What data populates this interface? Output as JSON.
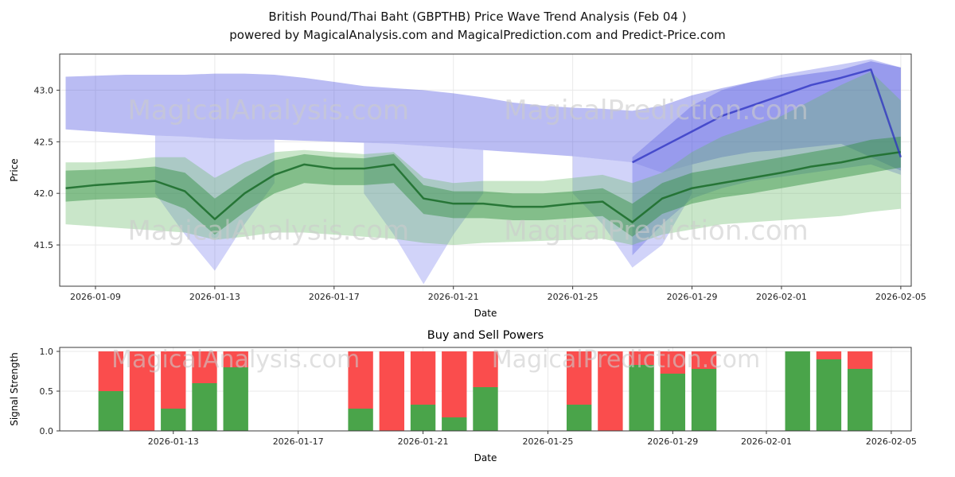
{
  "page": {
    "title_line1": "British Pound/Thai Baht (GBPTHB) Price Wave Trend Analysis (Feb 04 )",
    "title_line2": "powered by MagicalAnalysis.com and MagicalPrediction.com and Predict-Price.com"
  },
  "watermarks": {
    "analysis": "MagicalAnalysis.com",
    "prediction": "MagicalPrediction.com"
  },
  "chart_data": [
    {
      "name": "price_wave_trend",
      "type": "area",
      "title": "British Pound/Thai Baht (GBPTHB) Price Wave Trend Analysis (Feb 04 )",
      "xlabel": "Date",
      "ylabel": "Price",
      "x_base": "2026-01-08",
      "xlim": [
        -0.2,
        28.35
      ],
      "ylim": [
        41.1,
        43.35
      ],
      "ytick_values": [
        41.5,
        42.0,
        42.5,
        43.0
      ],
      "ytick_labels": [
        "41.5",
        "42.0",
        "42.5",
        "43.0"
      ],
      "xtick_labels": [
        "2026-01-09",
        "2026-01-13",
        "2026-01-17",
        "2026-01-21",
        "2026-01-25",
        "2026-01-29",
        "2026-02-01",
        "2026-02-05"
      ],
      "x_dates": [
        "2026-01-08",
        "2026-01-09",
        "2026-01-10",
        "2026-01-11",
        "2026-01-12",
        "2026-01-13",
        "2026-01-14",
        "2026-01-15",
        "2026-01-16",
        "2026-01-17",
        "2026-01-18",
        "2026-01-19",
        "2026-01-20",
        "2026-01-21",
        "2026-01-22",
        "2026-01-23",
        "2026-01-24",
        "2026-01-25",
        "2026-01-26",
        "2026-01-27",
        "2026-01-28",
        "2026-01-29",
        "2026-01-30",
        "2026-01-31",
        "2026-02-01",
        "2026-02-02",
        "2026-02-03",
        "2026-02-04",
        "2026-02-05"
      ],
      "bands": [
        {
          "name": "blue-upper-band",
          "color": "#4a50e0",
          "opacity": 0.38,
          "upper": [
            43.13,
            43.14,
            43.15,
            43.15,
            43.15,
            43.16,
            43.16,
            43.15,
            43.12,
            43.08,
            43.04,
            43.02,
            43.0,
            42.97,
            42.93,
            42.88,
            42.85,
            42.83,
            42.82,
            42.8,
            42.85,
            42.95,
            43.02,
            43.08,
            43.12,
            43.16,
            43.2,
            43.28,
            43.22
          ],
          "lower": [
            42.62,
            42.6,
            42.58,
            42.56,
            42.55,
            42.53,
            42.52,
            42.52,
            42.51,
            42.5,
            42.49,
            42.48,
            42.46,
            42.44,
            42.42,
            42.4,
            42.38,
            42.36,
            42.33,
            42.3,
            42.2,
            42.28,
            42.35,
            42.4,
            42.42,
            42.45,
            42.48,
            42.35,
            42.22
          ]
        },
        {
          "name": "blue-dip-band",
          "color": "#5a60e8",
          "opacity": 0.28,
          "upper": [
            null,
            null,
            null,
            42.56,
            42.55,
            42.53,
            42.52,
            42.52,
            null,
            null,
            42.49,
            42.48,
            42.46,
            42.44,
            42.42,
            null,
            null,
            42.36,
            42.33,
            42.3,
            42.2,
            42.28,
            null,
            null,
            null,
            null,
            null,
            null,
            null
          ],
          "lower": [
            null,
            null,
            null,
            42.0,
            41.6,
            41.25,
            41.7,
            42.1,
            null,
            null,
            42.0,
            41.6,
            41.12,
            41.6,
            42.0,
            null,
            null,
            42.0,
            41.7,
            41.28,
            41.5,
            42.0,
            null,
            null,
            null,
            null,
            null,
            null,
            null
          ]
        },
        {
          "name": "blue-right-surge-band",
          "color": "#4a50e0",
          "opacity": 0.3,
          "upper": [
            null,
            null,
            null,
            null,
            null,
            null,
            null,
            null,
            null,
            null,
            null,
            null,
            null,
            null,
            null,
            null,
            null,
            null,
            null,
            42.35,
            42.6,
            42.85,
            43.0,
            43.08,
            43.15,
            43.2,
            43.25,
            43.3,
            43.22
          ],
          "lower": [
            null,
            null,
            null,
            null,
            null,
            null,
            null,
            null,
            null,
            null,
            null,
            null,
            null,
            null,
            null,
            null,
            null,
            null,
            null,
            41.4,
            41.7,
            41.95,
            42.05,
            42.12,
            42.16,
            42.2,
            42.24,
            42.28,
            42.18
          ]
        },
        {
          "name": "green-outer-band",
          "color": "#63b663",
          "opacity": 0.35,
          "upper": [
            42.3,
            42.3,
            42.32,
            42.35,
            42.35,
            42.15,
            42.3,
            42.4,
            42.42,
            42.4,
            42.38,
            42.4,
            42.15,
            42.1,
            42.12,
            42.12,
            42.12,
            42.15,
            42.18,
            42.1,
            42.2,
            42.4,
            42.55,
            42.65,
            42.75,
            42.9,
            43.05,
            43.18,
            42.9
          ],
          "lower": [
            41.7,
            41.68,
            41.66,
            41.64,
            41.62,
            41.55,
            41.58,
            41.62,
            41.62,
            41.6,
            41.58,
            41.56,
            41.52,
            41.5,
            41.52,
            41.53,
            41.54,
            41.55,
            41.56,
            41.5,
            41.6,
            41.65,
            41.7,
            41.72,
            41.74,
            41.76,
            41.78,
            41.82,
            41.85
          ]
        },
        {
          "name": "green-inner-band",
          "color": "#2f8f3f",
          "opacity": 0.45,
          "upper": [
            42.22,
            42.23,
            42.24,
            42.26,
            42.2,
            41.95,
            42.15,
            42.32,
            42.38,
            42.35,
            42.34,
            42.38,
            42.08,
            42.02,
            42.02,
            42.0,
            42.0,
            42.02,
            42.05,
            41.9,
            42.1,
            42.2,
            42.25,
            42.3,
            42.35,
            42.4,
            42.45,
            42.52,
            42.55
          ],
          "lower": [
            41.92,
            41.94,
            41.95,
            41.96,
            41.85,
            41.6,
            41.82,
            42.0,
            42.1,
            42.08,
            42.08,
            42.1,
            41.8,
            41.76,
            41.76,
            41.74,
            41.74,
            41.76,
            41.78,
            41.58,
            41.8,
            41.9,
            41.96,
            42.0,
            42.05,
            42.1,
            42.15,
            42.2,
            42.25
          ]
        }
      ],
      "lines": [
        {
          "name": "green-trend-line",
          "color": "#1e6f2e",
          "width": 2.5,
          "opacity": 0.9,
          "values": [
            42.05,
            42.08,
            42.1,
            42.12,
            42.02,
            41.75,
            42.0,
            42.18,
            42.28,
            42.24,
            42.24,
            42.28,
            41.95,
            41.9,
            41.9,
            41.87,
            41.87,
            41.9,
            41.92,
            41.72,
            41.95,
            42.05,
            42.1,
            42.15,
            42.2,
            42.26,
            42.3,
            42.36,
            42.4
          ]
        },
        {
          "name": "blue-trend-line",
          "color": "#2b30c0",
          "width": 2.5,
          "opacity": 0.75,
          "values": [
            null,
            null,
            null,
            null,
            null,
            null,
            null,
            null,
            null,
            null,
            null,
            null,
            null,
            null,
            null,
            null,
            null,
            null,
            null,
            42.3,
            42.45,
            42.6,
            42.75,
            42.85,
            42.95,
            43.05,
            43.12,
            43.2,
            42.35
          ]
        }
      ],
      "watermarks": [
        {
          "which": "analysis",
          "d": 6.8,
          "v": 42.72,
          "size": 34
        },
        {
          "which": "prediction",
          "d": 19.8,
          "v": 42.72,
          "size": 34
        },
        {
          "which": "analysis",
          "d": 6.8,
          "v": 41.55,
          "size": 34
        },
        {
          "which": "prediction",
          "d": 19.8,
          "v": 41.55,
          "size": 34
        }
      ]
    },
    {
      "name": "buy_sell_powers",
      "type": "bar",
      "title": "Buy and Sell Powers",
      "xlabel": "Date",
      "ylabel": "Signal Strength",
      "x_base": "2026-01-08",
      "xlim": [
        1.36,
        28.64
      ],
      "ylim": [
        0,
        1.05
      ],
      "ytick_values": [
        0.0,
        0.5,
        1.0
      ],
      "ytick_labels": [
        "0.0",
        "0.5",
        "1.0"
      ],
      "xtick_labels": [
        "2026-01-13",
        "2026-01-17",
        "2026-01-21",
        "2026-01-25",
        "2026-01-29",
        "2026-02-01",
        "2026-02-05"
      ],
      "bar_width": 0.8,
      "colors": {
        "buy": "#4aa44a",
        "sell": "#fa4d4d"
      },
      "bars": [
        {
          "date": "2026-01-11",
          "buy": 0.5,
          "sell": 0.5
        },
        {
          "date": "2026-01-12",
          "buy": 0.0,
          "sell": 1.0
        },
        {
          "date": "2026-01-13",
          "buy": 0.28,
          "sell": 0.72
        },
        {
          "date": "2026-01-14",
          "buy": 0.6,
          "sell": 0.4
        },
        {
          "date": "2026-01-15",
          "buy": 0.8,
          "sell": 0.2
        },
        {
          "date": "2026-01-19",
          "buy": 0.28,
          "sell": 0.72
        },
        {
          "date": "2026-01-20",
          "buy": 0.0,
          "sell": 1.0
        },
        {
          "date": "2026-01-21",
          "buy": 0.33,
          "sell": 0.67
        },
        {
          "date": "2026-01-22",
          "buy": 0.17,
          "sell": 0.83
        },
        {
          "date": "2026-01-23",
          "buy": 0.55,
          "sell": 0.45
        },
        {
          "date": "2026-01-26",
          "buy": 0.33,
          "sell": 0.67
        },
        {
          "date": "2026-01-27",
          "buy": 0.0,
          "sell": 1.0
        },
        {
          "date": "2026-01-28",
          "buy": 0.83,
          "sell": 0.17
        },
        {
          "date": "2026-01-29",
          "buy": 0.72,
          "sell": 0.28
        },
        {
          "date": "2026-01-30",
          "buy": 0.78,
          "sell": 0.22
        },
        {
          "date": "2026-02-02",
          "buy": 1.0,
          "sell": 0.0
        },
        {
          "date": "2026-02-03",
          "buy": 0.9,
          "sell": 0.1
        },
        {
          "date": "2026-02-04",
          "buy": 0.78,
          "sell": 0.22
        }
      ],
      "watermarks": [
        {
          "which": "analysis",
          "d": 7.0,
          "v": 0.8,
          "size": 30
        },
        {
          "which": "prediction",
          "d": 19.5,
          "v": 0.8,
          "size": 30
        }
      ]
    }
  ]
}
